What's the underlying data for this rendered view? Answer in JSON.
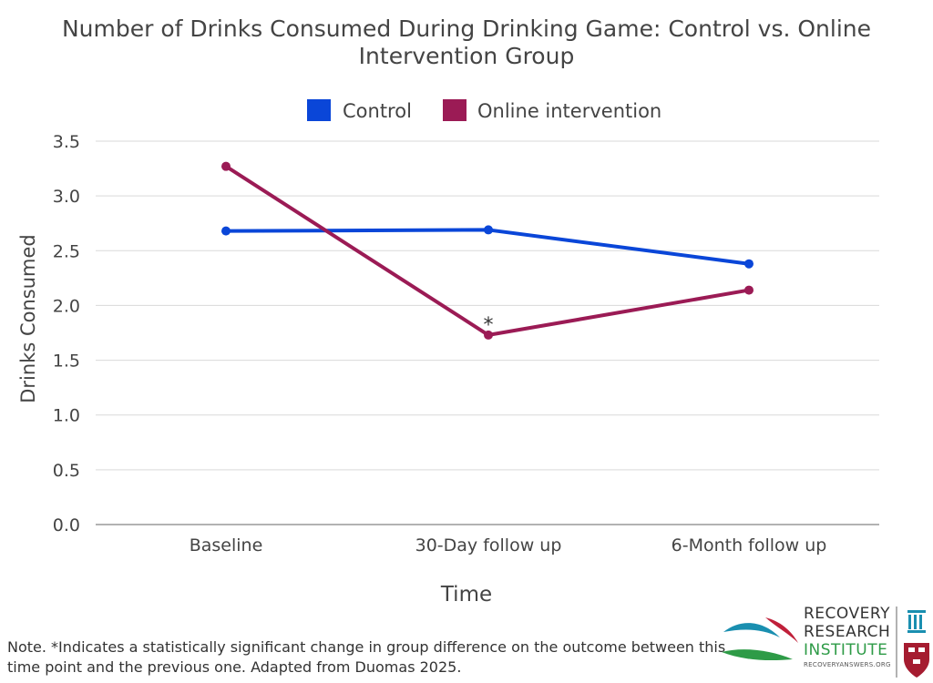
{
  "chart_data": {
    "type": "line",
    "title_lines": [
      "Number of Drinks Consumed During Drinking Game: Control vs. Online",
      "Intervention Group"
    ],
    "xlabel": "Time",
    "ylabel": "Drinks Consumed",
    "categories": [
      "Baseline",
      "30-Day follow up",
      "6-Month follow up"
    ],
    "ylim": [
      0,
      3.5
    ],
    "yticks": [
      "0.0",
      "0.5",
      "1.0",
      "1.5",
      "2.0",
      "2.5",
      "3.0",
      "3.5"
    ],
    "grid": true,
    "legend_position": "top-center",
    "series": [
      {
        "name": "Control",
        "color": "#0a46d8",
        "values": [
          2.68,
          2.69,
          2.38
        ]
      },
      {
        "name": "Online intervention",
        "color": "#9b1b55",
        "values": [
          3.27,
          1.73,
          2.14
        ]
      }
    ],
    "annotations": [
      {
        "text": "*",
        "series": 1,
        "index": 1
      }
    ]
  },
  "note": "Note. *Indicates a statistically significant change in group difference on the outcome between this time point and the previous one. Adapted from Duomas 2025.",
  "logo": {
    "line1": "RECOVERY",
    "line2": "RESEARCH",
    "line3": "INSTITUTE",
    "url": "RECOVERYANSWERS.ORG",
    "colors": {
      "teal": "#1a8fb0",
      "red": "#c0203a",
      "green": "#2e9b47",
      "crimson": "#a51c30"
    }
  }
}
